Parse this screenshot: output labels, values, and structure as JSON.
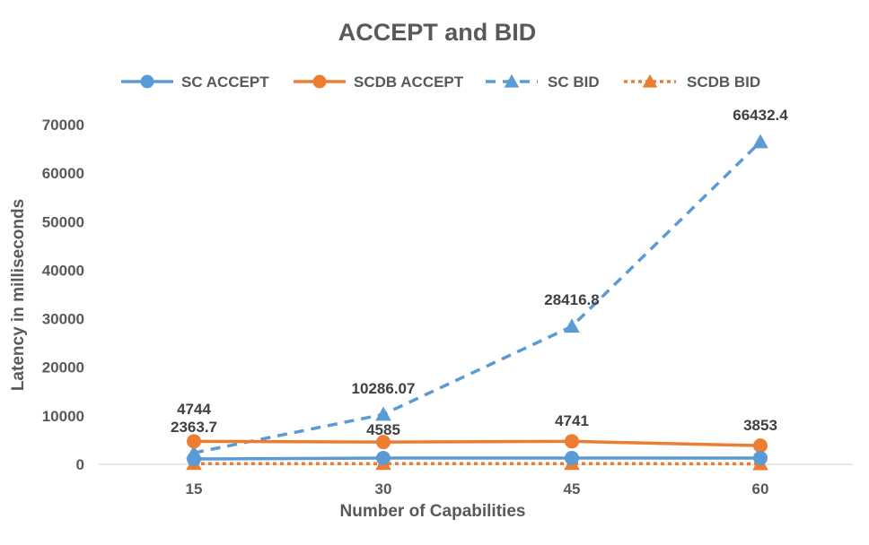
{
  "chart_data": {
    "type": "line",
    "title": "ACCEPT and BID",
    "xlabel": "Number of Capabilities",
    "ylabel": "Latency  in milliseconds",
    "categories": [
      "15",
      "30",
      "45",
      "60"
    ],
    "ylim": [
      0,
      70000
    ],
    "yticks": [
      "0",
      "10000",
      "20000",
      "30000",
      "40000",
      "50000",
      "60000",
      "70000"
    ],
    "grid": false,
    "legend_position": "top",
    "series": [
      {
        "name": "SC ACCEPT",
        "values": [
          1100,
          1300,
          1300,
          1300
        ],
        "color": "#5B9BD5",
        "line_style": "solid",
        "marker": "circle",
        "labels": [
          "",
          "",
          "",
          ""
        ]
      },
      {
        "name": "SCDB ACCEPT",
        "values": [
          4744,
          4585,
          4741,
          3853
        ],
        "color": "#ED7D31",
        "line_style": "solid",
        "marker": "circle",
        "labels": [
          "4744",
          "4585",
          "4741",
          "3853"
        ]
      },
      {
        "name": "SC BID",
        "values": [
          2363.7,
          10286.07,
          28416.8,
          66432.4
        ],
        "color": "#5B9BD5",
        "line_style": "dashed",
        "marker": "triangle",
        "labels": [
          "2363.7",
          "10286.07",
          "28416.8",
          "66432.4"
        ]
      },
      {
        "name": "SCDB BID",
        "values": [
          150,
          150,
          150,
          100
        ],
        "color": "#ED7D31",
        "line_style": "dotted",
        "marker": "triangle",
        "labels": [
          "",
          "",
          "",
          ""
        ]
      }
    ]
  }
}
